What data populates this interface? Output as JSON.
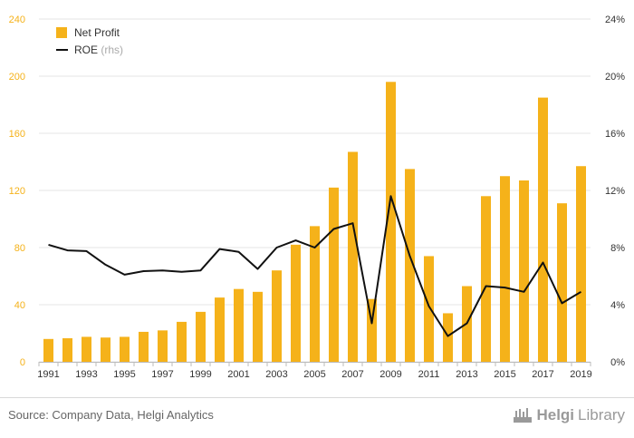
{
  "chart_data": {
    "type": "bar+line",
    "x": [
      "1991",
      "1992",
      "1993",
      "1994",
      "1995",
      "1996",
      "1997",
      "1998",
      "1999",
      "2000",
      "2001",
      "2002",
      "2003",
      "2004",
      "2005",
      "2006",
      "2007",
      "2008",
      "2009",
      "2010",
      "2011",
      "2012",
      "2013",
      "2014",
      "2015",
      "2016",
      "2017",
      "2018",
      "2019"
    ],
    "x_tick_labels": [
      "1991",
      "1993",
      "1995",
      "1997",
      "1999",
      "2001",
      "2003",
      "2005",
      "2007",
      "2009",
      "2011",
      "2013",
      "2015",
      "2017",
      "2019"
    ],
    "series": [
      {
        "name": "Net Profit",
        "type": "bar",
        "axis": "left",
        "color": "#f5b21a",
        "values": [
          16,
          16.5,
          17.5,
          17,
          17.5,
          21,
          22,
          28,
          35,
          45,
          51,
          49,
          64,
          82,
          95,
          122,
          147,
          44,
          196,
          135,
          74,
          34,
          53,
          116,
          130,
          127,
          185,
          111,
          137
        ]
      },
      {
        "name": "ROE",
        "name_suffix": "(rhs)",
        "type": "line",
        "axis": "right",
        "color": "#111111",
        "values": [
          8.2,
          7.8,
          7.75,
          6.8,
          6.1,
          6.35,
          6.4,
          6.3,
          6.4,
          7.9,
          7.7,
          6.5,
          8.0,
          8.5,
          8.0,
          9.3,
          9.7,
          2.7,
          11.6,
          7.4,
          3.9,
          1.8,
          2.7,
          5.3,
          5.2,
          4.9,
          6.95,
          4.1,
          4.9
        ]
      }
    ],
    "y_left": {
      "min": 0,
      "max": 240,
      "ticks": [
        0,
        40,
        80,
        120,
        160,
        200,
        240
      ],
      "color": "#f5b21a"
    },
    "y_right": {
      "min": 0,
      "max": 24,
      "ticks": [
        "0%",
        "4%",
        "8%",
        "12%",
        "16%",
        "20%",
        "24%"
      ]
    },
    "grid": true,
    "legend_position": "top-left"
  },
  "footer": {
    "source": "Source: Company Data, Helgi Analytics",
    "brand_a": "Helgi",
    "brand_b": "Library",
    "brand_icon": "helgi-library-logo-icon"
  }
}
